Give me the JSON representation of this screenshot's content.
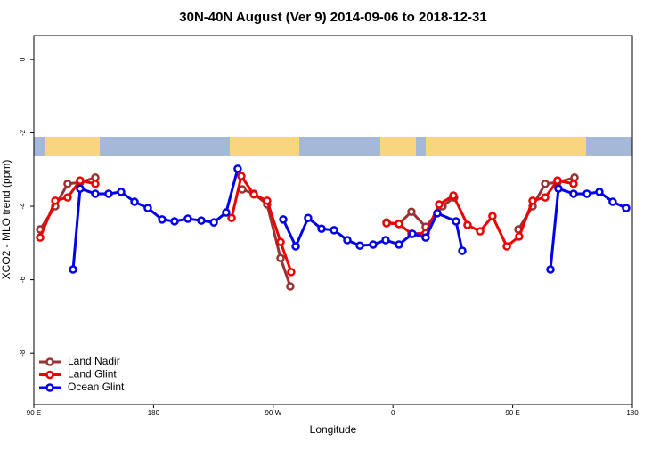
{
  "chart_data": {
    "type": "line",
    "title": "30N-40N August (Ver 9)   2014-09-06 to 2018-12-31",
    "x_label": "Longitude",
    "y_label": "XCO2 - MLO trend (ppm)",
    "xlim": [
      90,
      540
    ],
    "xticks": [
      {
        "value": 90,
        "label": "90 E"
      },
      180,
      {
        "value": 270,
        "label": "90 W"
      },
      {
        "value": 360,
        "label": "0"
      },
      {
        "value": 450,
        "label": "90 E"
      },
      {
        "value": 540,
        "label": "180"
      }
    ],
    "ylim": [
      -9.4,
      0.65
    ],
    "yticks": [
      0,
      -2,
      -4,
      -6,
      -8
    ],
    "legend": "bottom-left",
    "series": [
      {
        "name": "Land Nadir",
        "color": "#993333",
        "x": [
          94.7,
          106.1,
          115.4,
          124.8,
          136.2,
          null,
          246.7,
          255.4,
          265.4,
          275.5,
          282.8,
          null,
          355.2,
          364.5,
          373.9,
          384.6,
          397.3,
          406.0,
          null,
          454.3,
          465.0,
          474.4,
          483.7,
          496.5
        ],
        "values": [
          -4.63,
          -4.0,
          -3.39,
          -3.35,
          -3.22,
          null,
          -3.54,
          -3.66,
          -3.95,
          -5.41,
          -6.18,
          null,
          -4.44,
          -4.48,
          -4.15,
          -4.56,
          -4.0,
          -3.76,
          null,
          -4.63,
          -4.0,
          -3.39,
          -3.35,
          -3.22
        ]
      },
      {
        "name": "Land Glint",
        "color": "#ee0000",
        "x": [
          94.7,
          106.1,
          115.4,
          124.8,
          136.2,
          null,
          238.7,
          246.0,
          255.4,
          265.4,
          275.5,
          283.5,
          null,
          355.2,
          364.5,
          373.9,
          384.6,
          394.7,
          405.4,
          416.1,
          425.5,
          434.8,
          445.6,
          454.9,
          465.0,
          474.4,
          483.7,
          495.8
        ],
        "values": [
          -4.85,
          -3.85,
          -3.76,
          -3.3,
          -3.39,
          null,
          -4.32,
          -3.18,
          -3.68,
          -3.85,
          -4.97,
          -5.79,
          null,
          -4.46,
          -4.48,
          -4.75,
          -4.73,
          -3.95,
          -3.71,
          -4.51,
          -4.68,
          -4.27,
          -5.09,
          -4.82,
          -3.85,
          -3.76,
          -3.3,
          -3.39
        ]
      },
      {
        "name": "Ocean Glint",
        "color": "#0000ee",
        "x": [
          119.5,
          124.8,
          136.2,
          146.2,
          155.6,
          165.7,
          175.7,
          186.4,
          195.8,
          205.8,
          215.9,
          225.3,
          234.6,
          243.3,
          null,
          277.5,
          286.9,
          296.2,
          306.3,
          315.7,
          325.7,
          335.1,
          345.1,
          354.5,
          364.5,
          374.6,
          384.6,
          393.3,
          407.4,
          412.1,
          null,
          478.4,
          484.4,
          495.8,
          505.8,
          515.2,
          525.2,
          535.3
        ],
        "values": [
          -5.72,
          -3.52,
          -3.66,
          -3.66,
          -3.61,
          -3.88,
          -4.05,
          -4.36,
          -4.41,
          -4.34,
          -4.39,
          -4.44,
          -4.17,
          -2.98,
          null,
          -4.36,
          -5.09,
          -4.32,
          -4.61,
          -4.65,
          -4.92,
          -5.07,
          -5.04,
          -4.92,
          -5.04,
          -4.75,
          -4.85,
          -4.19,
          -4.41,
          -5.21,
          null,
          -5.72,
          -3.52,
          -3.66,
          -3.66,
          -3.61,
          -3.88,
          -4.05
        ]
      }
    ]
  }
}
